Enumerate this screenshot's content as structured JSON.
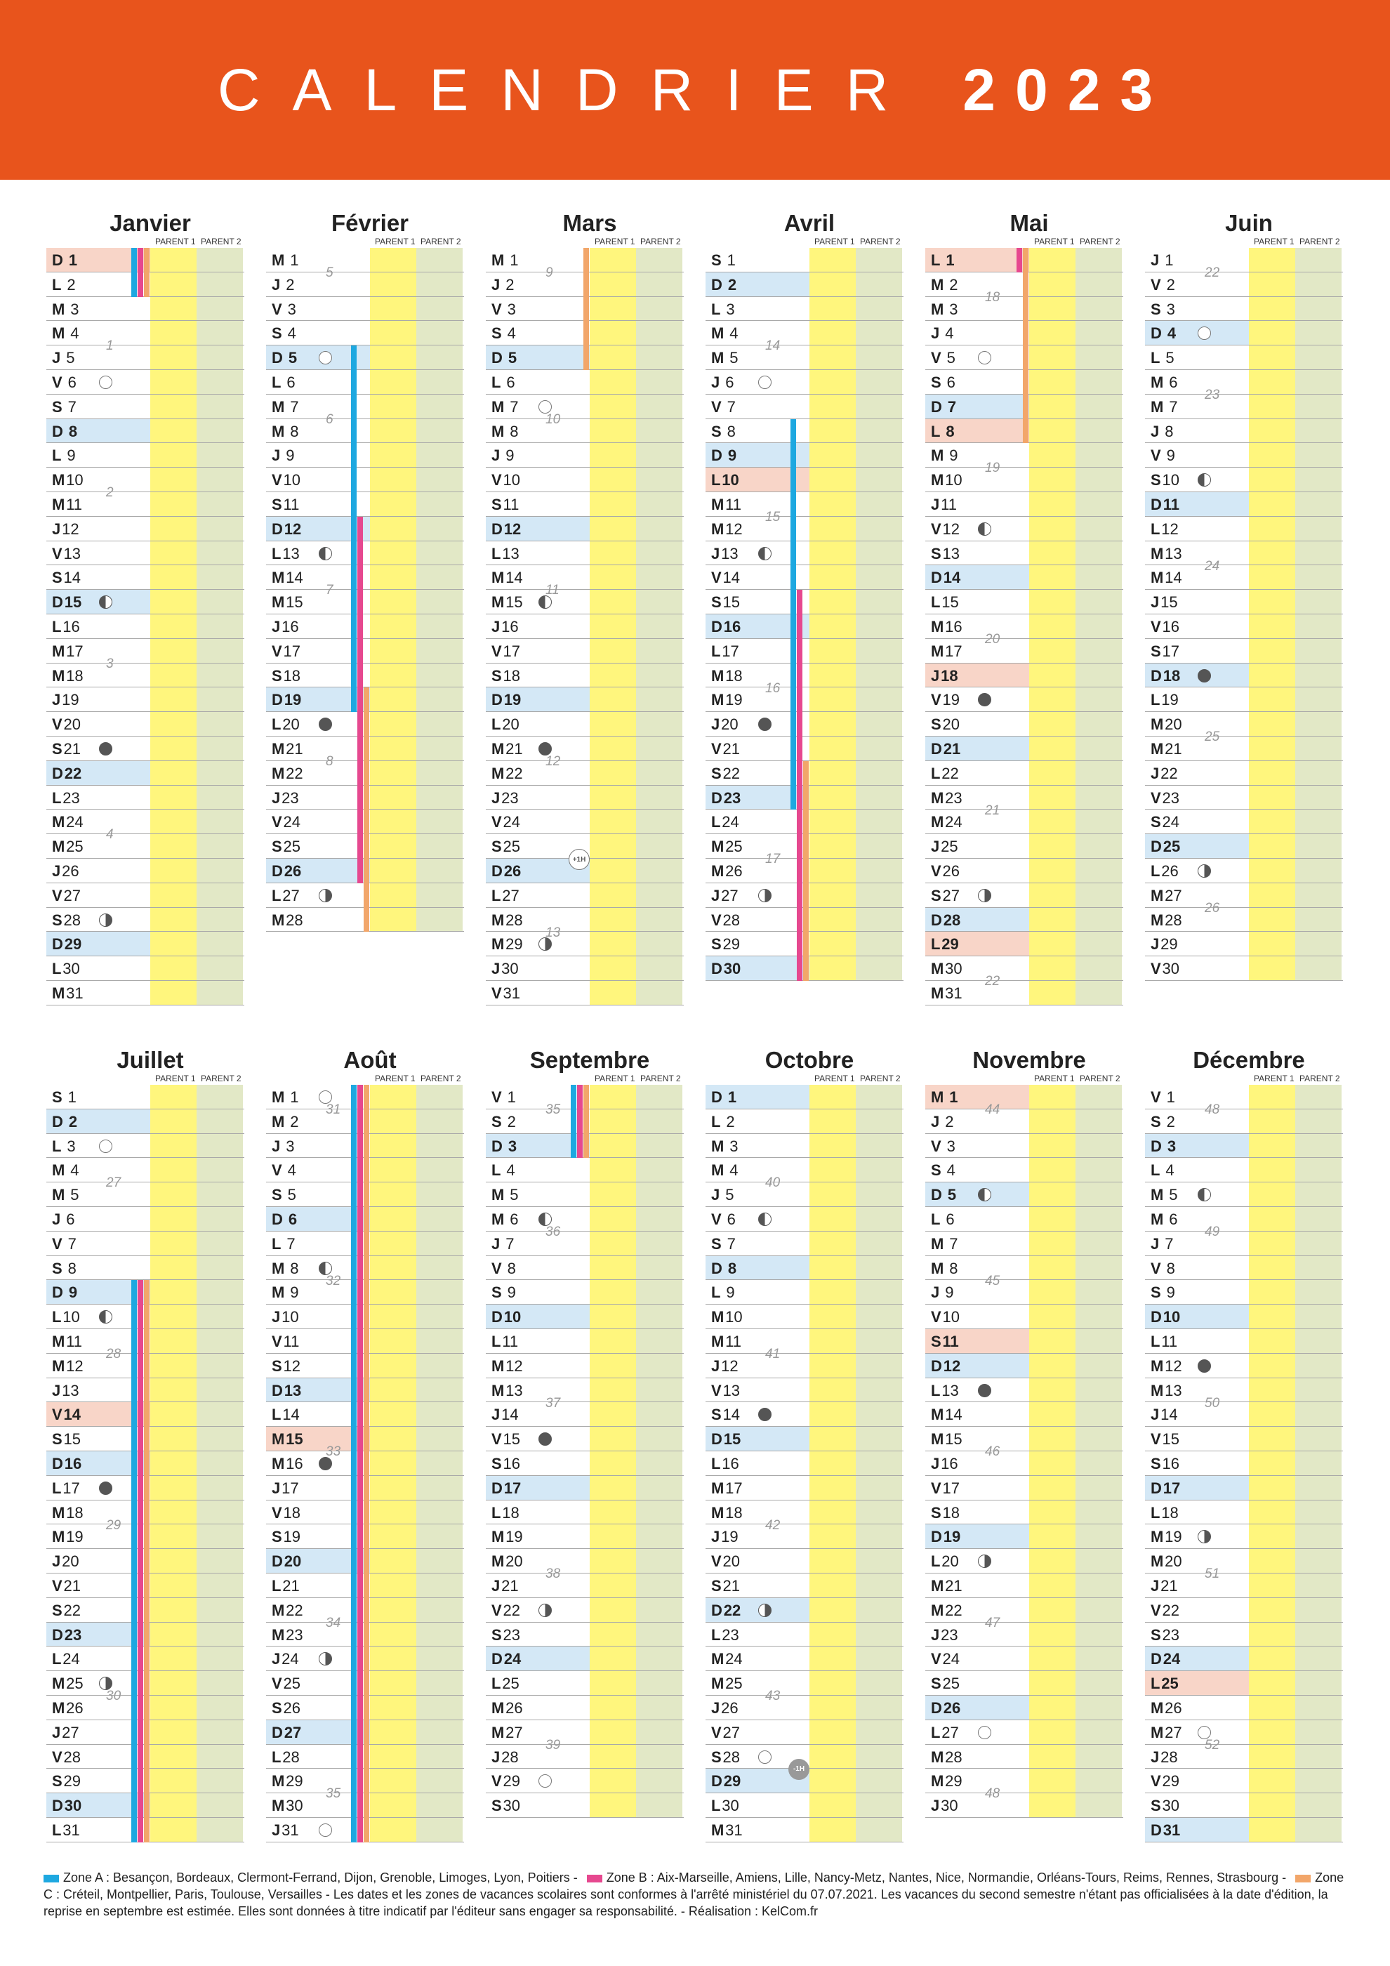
{
  "header": {
    "title": "CALENDRIER",
    "year": "2023"
  },
  "parent1_label": "PARENT 1",
  "parent2_label": "PARENT 2",
  "months": [
    {
      "name": "Janvier",
      "start": 0,
      "days": 31,
      "sun": [
        1,
        8,
        15,
        22,
        29
      ],
      "hol": [
        1
      ],
      "moons": {
        "6": "full",
        "15": "lq",
        "21": "new",
        "28": "fq"
      },
      "weeks": [
        [
          4,
          1
        ],
        [
          10,
          2
        ],
        [
          17,
          3
        ],
        [
          24,
          4
        ]
      ],
      "bars": [
        {
          "z": "A",
          "from": 1,
          "to": 2
        },
        {
          "z": "B",
          "from": 1,
          "to": 2
        },
        {
          "z": "C",
          "from": 1,
          "to": 2
        }
      ]
    },
    {
      "name": "Février",
      "start": 3,
      "days": 28,
      "sun": [
        5,
        12,
        19,
        26
      ],
      "hol": [],
      "moons": {
        "5": "full",
        "13": "lq",
        "20": "new",
        "27": "fq"
      },
      "weeks": [
        [
          1,
          5
        ],
        [
          7,
          6
        ],
        [
          14,
          7
        ],
        [
          21,
          8
        ]
      ],
      "bars": [
        {
          "z": "A",
          "from": 5,
          "to": 19
        },
        {
          "z": "B",
          "from": 12,
          "to": 26
        },
        {
          "z": "C",
          "from": 19,
          "to": 28
        }
      ]
    },
    {
      "name": "Mars",
      "start": 3,
      "days": 31,
      "sun": [
        5,
        12,
        19,
        26
      ],
      "hol": [],
      "moons": {
        "7": "full",
        "15": "lq",
        "21": "new",
        "29": "fq"
      },
      "weeks": [
        [
          1,
          9
        ],
        [
          7,
          10
        ],
        [
          14,
          11
        ],
        [
          21,
          12
        ],
        [
          28,
          13
        ]
      ],
      "bars": [
        {
          "z": "C",
          "from": 1,
          "to": 5
        }
      ],
      "dst": {
        "day": 26,
        "text": "+1H",
        "kind": "plus"
      }
    },
    {
      "name": "Avril",
      "start": 6,
      "days": 30,
      "sun": [
        2,
        9,
        16,
        23,
        30
      ],
      "hol": [
        10
      ],
      "moons": {
        "6": "full",
        "13": "lq",
        "20": "new",
        "27": "fq"
      },
      "weeks": [
        [
          4,
          14
        ],
        [
          11,
          15
        ],
        [
          18,
          16
        ],
        [
          25,
          17
        ]
      ],
      "bars": [
        {
          "z": "A",
          "from": 8,
          "to": 23
        },
        {
          "z": "B",
          "from": 15,
          "to": 30
        },
        {
          "z": "C",
          "from": 22,
          "to": 30
        }
      ]
    },
    {
      "name": "Mai",
      "start": 1,
      "days": 31,
      "sun": [
        7,
        14,
        21,
        28
      ],
      "hol": [
        1,
        8,
        18,
        29
      ],
      "moons": {
        "5": "full",
        "12": "lq",
        "19": "new",
        "27": "fq"
      },
      "weeks": [
        [
          2,
          18
        ],
        [
          9,
          19
        ],
        [
          16,
          20
        ],
        [
          23,
          21
        ],
        [
          30,
          22
        ]
      ],
      "bars": [
        {
          "z": "B",
          "from": 1,
          "to": 1
        },
        {
          "z": "C",
          "from": 1,
          "to": 8
        }
      ]
    },
    {
      "name": "Juin",
      "start": 4,
      "days": 30,
      "sun": [
        4,
        11,
        18,
        25
      ],
      "hol": [],
      "moons": {
        "4": "full",
        "10": "lq",
        "18": "new",
        "26": "fq"
      },
      "weeks": [
        [
          1,
          22
        ],
        [
          6,
          23
        ],
        [
          13,
          24
        ],
        [
          20,
          25
        ],
        [
          27,
          26
        ]
      ],
      "bars": []
    },
    {
      "name": "Juillet",
      "start": 6,
      "days": 31,
      "sun": [
        2,
        9,
        16,
        23,
        30
      ],
      "hol": [
        14
      ],
      "moons": {
        "3": "full",
        "10": "lq",
        "17": "new",
        "25": "fq"
      },
      "weeks": [
        [
          4,
          27
        ],
        [
          11,
          28
        ],
        [
          18,
          29
        ],
        [
          25,
          30
        ]
      ],
      "bars": [
        {
          "z": "A",
          "from": 9,
          "to": 31
        },
        {
          "z": "B",
          "from": 9,
          "to": 31
        },
        {
          "z": "C",
          "from": 9,
          "to": 31
        }
      ]
    },
    {
      "name": "Août",
      "start": 2,
      "days": 31,
      "sun": [
        6,
        13,
        20,
        27
      ],
      "hol": [
        15
      ],
      "moons": {
        "1": "full",
        "8": "lq",
        "16": "new",
        "24": "fq",
        "31": "full"
      },
      "weeks": [
        [
          1,
          31
        ],
        [
          8,
          32
        ],
        [
          15,
          33
        ],
        [
          22,
          34
        ],
        [
          29,
          35
        ]
      ],
      "bars": [
        {
          "z": "A",
          "from": 1,
          "to": 31
        },
        {
          "z": "B",
          "from": 1,
          "to": 31
        },
        {
          "z": "C",
          "from": 1,
          "to": 31
        }
      ]
    },
    {
      "name": "Septembre",
      "start": 5,
      "days": 30,
      "sun": [
        3,
        10,
        17,
        24
      ],
      "hol": [],
      "moons": {
        "6": "lq",
        "15": "new",
        "22": "fq",
        "29": "full"
      },
      "weeks": [
        [
          1,
          35
        ],
        [
          6,
          36
        ],
        [
          13,
          37
        ],
        [
          20,
          38
        ],
        [
          27,
          39
        ]
      ],
      "bars": [
        {
          "z": "A",
          "from": 1,
          "to": 3
        },
        {
          "z": "B",
          "from": 1,
          "to": 3
        },
        {
          "z": "C",
          "from": 1,
          "to": 3
        }
      ]
    },
    {
      "name": "Octobre",
      "start": 0,
      "days": 31,
      "sun": [
        1,
        8,
        15,
        22,
        29
      ],
      "hol": [],
      "moons": {
        "6": "lq",
        "14": "new",
        "22": "fq",
        "28": "full"
      },
      "weeks": [
        [
          4,
          40
        ],
        [
          11,
          41
        ],
        [
          18,
          42
        ],
        [
          25,
          43
        ]
      ],
      "bars": [],
      "dst": {
        "day": 29,
        "text": "-1H",
        "kind": "minus"
      }
    },
    {
      "name": "Novembre",
      "start": 3,
      "days": 30,
      "sun": [
        5,
        12,
        19,
        26
      ],
      "hol": [
        1,
        11
      ],
      "moons": {
        "5": "lq",
        "13": "new",
        "20": "fq",
        "27": "full"
      },
      "weeks": [
        [
          1,
          44
        ],
        [
          8,
          45
        ],
        [
          15,
          46
        ],
        [
          22,
          47
        ],
        [
          29,
          48
        ]
      ],
      "bars": []
    },
    {
      "name": "Décembre",
      "start": 5,
      "days": 31,
      "sun": [
        3,
        10,
        17,
        24,
        31
      ],
      "hol": [
        25
      ],
      "moons": {
        "5": "lq",
        "12": "new",
        "19": "fq",
        "27": "full"
      },
      "weeks": [
        [
          1,
          48
        ],
        [
          6,
          49
        ],
        [
          13,
          50
        ],
        [
          20,
          51
        ],
        [
          27,
          52
        ]
      ],
      "bars": []
    }
  ],
  "weekday_letters": [
    "D",
    "L",
    "M",
    "M",
    "J",
    "V",
    "S"
  ],
  "footer": {
    "zone_a": "Zone A : Besançon, Bordeaux, Clermont-Ferrand, Dijon, Grenoble, Limoges, Lyon, Poitiers  -",
    "zone_b": "Zone B : Aix-Marseille, Amiens, Lille, Nancy-Metz, Nantes, Nice, Normandie, Orléans-Tours, Reims, Rennes, Strasbourg  -",
    "zone_c": "Zone C : Créteil, Montpellier, Paris, Toulouse, Versailles - Les dates et les zones de vacances scolaires sont conformes à l'arrêté ministériel du 07.07.2021. Les vacances du second semestre n'étant pas officialisées à la date d'édition, la reprise en septembre est estimée. Elles sont données à titre indicatif par l'éditeur sans engager sa responsabilité. - Réalisation : KelCom.fr"
  },
  "colors": {
    "header": "#e8541c",
    "zone_a": "#1ea8e0",
    "zone_b": "#e6488f",
    "zone_c": "#f2a66a",
    "sunday": "#d4e8f6",
    "holiday": "#f8d5c8",
    "parent1": "#fff67d",
    "parent2": "#e2e8c6"
  }
}
